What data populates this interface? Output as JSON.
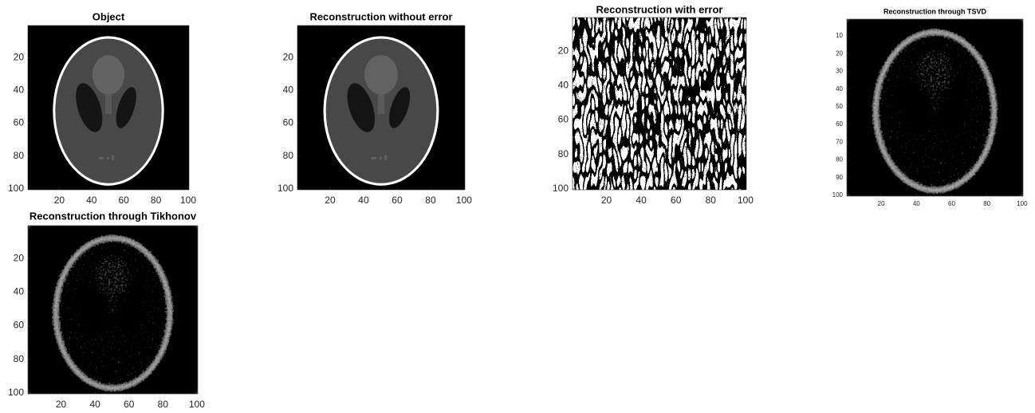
{
  "chart_data": [
    {
      "type": "image",
      "title": "Object",
      "xlim": [
        0.5,
        100.5
      ],
      "ylim": [
        0.5,
        100.5
      ],
      "y_reversed": true,
      "xticks": [
        20,
        40,
        60,
        80,
        100
      ],
      "yticks": [
        20,
        40,
        60,
        80,
        100
      ]
    },
    {
      "type": "image",
      "title": "Reconstruction without error",
      "xlim": [
        0.5,
        100.5
      ],
      "ylim": [
        0.5,
        100.5
      ],
      "y_reversed": true,
      "xticks": [
        20,
        40,
        60,
        80,
        100
      ],
      "yticks": [
        20,
        40,
        60,
        80,
        100
      ]
    },
    {
      "type": "image",
      "title": "Reconstruction with error",
      "xlim": [
        0.5,
        100.5
      ],
      "ylim": [
        0.5,
        100.5
      ],
      "y_reversed": true,
      "xticks": [
        20,
        40,
        60,
        80,
        100
      ],
      "yticks": [
        20,
        40,
        60,
        80,
        100
      ]
    },
    {
      "type": "image",
      "title": "Reconstruction through TSVD",
      "xlim": [
        0.5,
        100.5
      ],
      "ylim": [
        0.5,
        100.5
      ],
      "y_reversed": true,
      "xticks": [
        20,
        40,
        60,
        80,
        100
      ],
      "yticks": [
        10,
        20,
        30,
        40,
        50,
        60,
        70,
        80,
        90,
        100
      ]
    },
    {
      "type": "image",
      "title": "Reconstruction through Tikhonov",
      "xlim": [
        0.5,
        100.5
      ],
      "ylim": [
        0.5,
        100.5
      ],
      "y_reversed": true,
      "xticks": [
        20,
        40,
        60,
        80,
        100
      ],
      "yticks": [
        20,
        40,
        60,
        80,
        100
      ]
    }
  ]
}
